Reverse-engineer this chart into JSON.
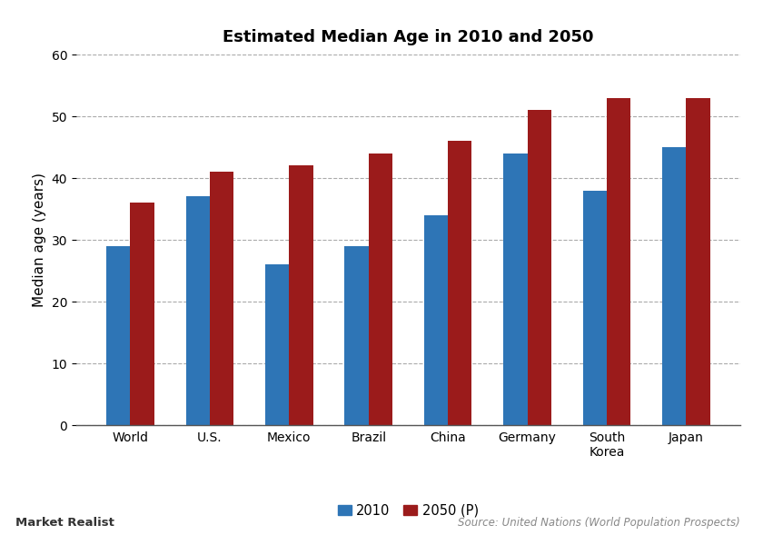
{
  "title": "Estimated Median Age in 2010 and 2050",
  "categories": [
    "World",
    "U.S.",
    "Mexico",
    "Brazil",
    "China",
    "Germany",
    "South\nKorea",
    "Japan"
  ],
  "values_2010": [
    29,
    37,
    26,
    29,
    34,
    44,
    38,
    45
  ],
  "values_2050": [
    36,
    41,
    42,
    44,
    46,
    51,
    53,
    53
  ],
  "color_2010": "#2E75B6",
  "color_2050": "#9B1B1B",
  "ylabel": "Median age (years)",
  "ylim": [
    0,
    60
  ],
  "yticks": [
    0,
    10,
    20,
    30,
    40,
    50,
    60
  ],
  "legend_2010": "2010",
  "legend_2050": "2050 (P)",
  "source_text": "Source: United Nations (World Population Prospects)",
  "watermark": "Market Realist",
  "background_color": "#ffffff",
  "grid_color": "#aaaaaa",
  "bar_width": 0.3
}
